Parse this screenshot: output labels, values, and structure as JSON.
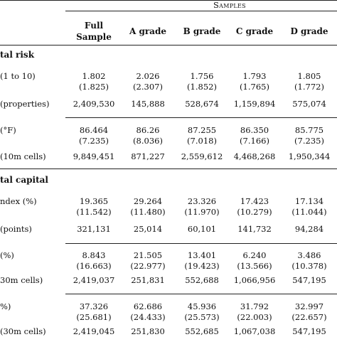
{
  "header": {
    "samples_title": "Samples",
    "columns": [
      "Full\nSample",
      "A grade",
      "B grade",
      "C grade",
      "D grade"
    ]
  },
  "sections": [
    {
      "title": "tal risk",
      "rows": [
        {
          "label": "(1 to 10)",
          "values": [
            "1.802",
            "2.026",
            "1.756",
            "1.793",
            "1.805"
          ],
          "sd": [
            "(1.825)",
            "(2.307)",
            "(1.852)",
            "(1.765)",
            "(1.772)"
          ]
        },
        {
          "label": "(properties)",
          "values": [
            "2,409,530",
            "145,888",
            "528,674",
            "1,159,894",
            "575,074"
          ]
        },
        {
          "label": "(°F)",
          "values": [
            "86.464",
            "86.26",
            "87.255",
            "86.350",
            "85.775"
          ],
          "sd": [
            "(7.235)",
            "(8.036)",
            "(7.018)",
            "(7.166)",
            "(7.235)"
          ]
        },
        {
          "label": "(10m cells)",
          "values": [
            "9,849,451",
            "871,227",
            "2,559,612",
            "4,468,268",
            "1,950,344"
          ]
        }
      ]
    },
    {
      "title": "tal capital",
      "rows": [
        {
          "label": "ndex (%)",
          "values": [
            "19.365",
            "29.264",
            "23.326",
            "17.423",
            "17.134"
          ],
          "sd": [
            "(11.542)",
            "(11.480)",
            "(11.970)",
            "(10.279)",
            "(11.044)"
          ]
        },
        {
          "label": "(points)",
          "values": [
            "321,131",
            "25,014",
            "60,101",
            "141,732",
            "94,284"
          ]
        },
        {
          "label": "(%)",
          "values": [
            "8.843",
            "21.505",
            "13.401",
            "6.240",
            "3.486"
          ],
          "sd": [
            "(16.663)",
            "(22.977)",
            "(19.423)",
            "(13.566)",
            "(10.378)"
          ]
        },
        {
          "label": "30m cells)",
          "values": [
            "2,419,037",
            "251,831",
            "552,688",
            "1,066,956",
            "547,195"
          ]
        },
        {
          "label": "%)",
          "values": [
            "37.326",
            "62.686",
            "45.936",
            "31.792",
            "32.997"
          ],
          "sd": [
            "(25.681)",
            "(24.433)",
            "(25.573)",
            "(22.003)",
            "(22.657)"
          ]
        },
        {
          "label": "(30m cells)",
          "values": [
            "2,419,045",
            "251,830",
            "552,685",
            "1,067,038",
            "547,195"
          ]
        }
      ]
    }
  ]
}
